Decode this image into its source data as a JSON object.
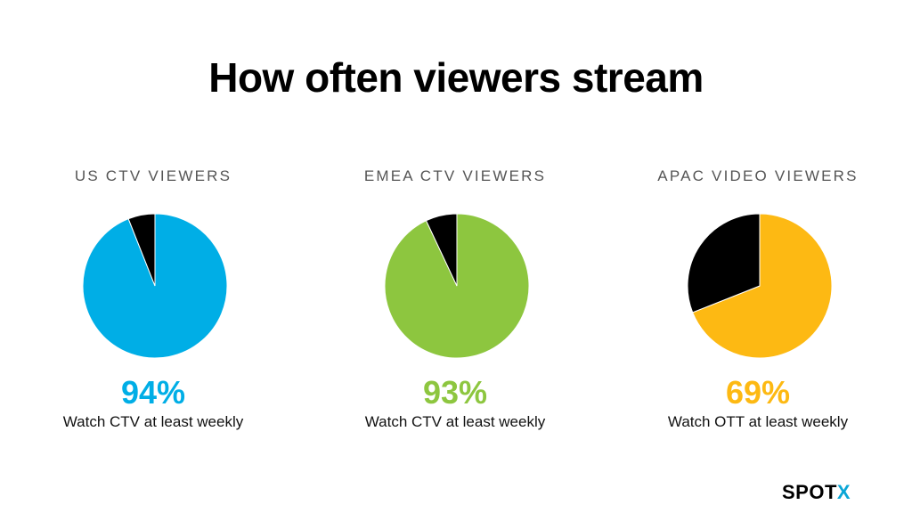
{
  "title": "How often viewers stream",
  "logo": {
    "text": "SPOT",
    "accent": "X"
  },
  "chart_data": [
    {
      "type": "pie",
      "title": "US CTV VIEWERS",
      "labels": [
        "Watch CTV at least weekly",
        ""
      ],
      "values": [
        94,
        6
      ],
      "colors": [
        "#00aee6",
        "#000000"
      ],
      "value_label": "94%",
      "caption": "Watch CTV at least weekly"
    },
    {
      "type": "pie",
      "title": "EMEA CTV VIEWERS",
      "labels": [
        "Watch CTV at least weekly",
        ""
      ],
      "values": [
        93,
        7
      ],
      "colors": [
        "#8dc63f",
        "#000000"
      ],
      "value_label": "93%",
      "caption": "Watch CTV at least weekly"
    },
    {
      "type": "pie",
      "title": "APAC VIDEO VIEWERS",
      "labels": [
        "Watch OTT at least weekly",
        ""
      ],
      "values": [
        69,
        31
      ],
      "colors": [
        "#fdb913",
        "#000000"
      ],
      "value_label": "69%",
      "caption": "Watch OTT at least weekly"
    }
  ]
}
